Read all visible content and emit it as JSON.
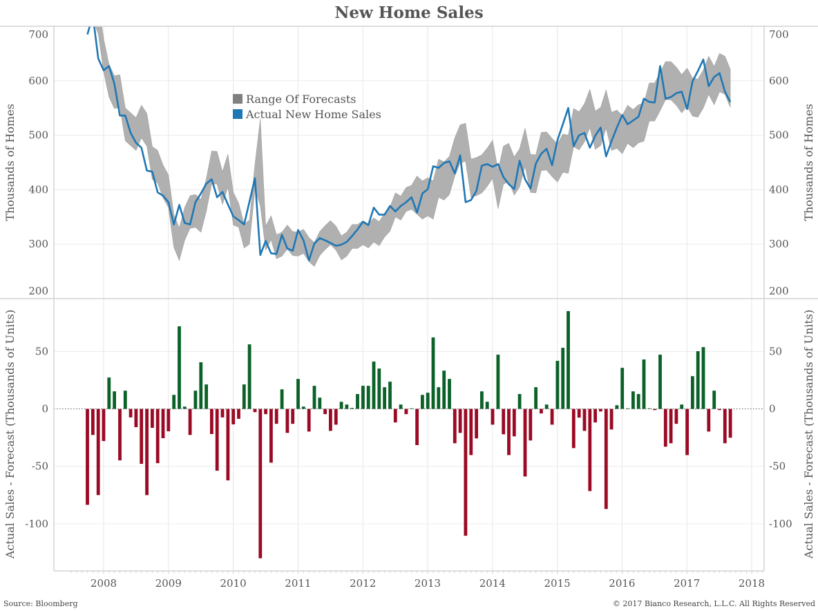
{
  "footer": {
    "source": "Source: Bloomberg",
    "copyright": "© 2017 Bianco Research, L.L.C. All Rights Reserved"
  },
  "chart_data": {
    "type": "line",
    "title": "New Home Sales",
    "start_month": "2007-10",
    "frequency": "monthly",
    "x_ticks": [
      "2008",
      "2009",
      "2010",
      "2011",
      "2012",
      "2013",
      "2014",
      "2015",
      "2016",
      "2017",
      "2018"
    ],
    "grid": true,
    "top": {
      "type": "area+line",
      "ylabel": "Thousands of Homes",
      "ylim": [
        200,
        700
      ],
      "yticks": [
        200,
        300,
        400,
        500,
        600,
        700
      ],
      "legend_position": "top-center",
      "legend": [
        {
          "label": "Range Of Forecasts",
          "color": "#808080"
        },
        {
          "label": "Actual New Home Sales",
          "color": "#1f77b4"
        }
      ],
      "band_color": "#b0b0b0",
      "actual": [
        685,
        720,
        641,
        619,
        627,
        594,
        536,
        536,
        504,
        486,
        477,
        435,
        433,
        395,
        389,
        377,
        336,
        372,
        339,
        336,
        377,
        393,
        411,
        419,
        386,
        396,
        373,
        351,
        344,
        336,
        378,
        421,
        280,
        306,
        283,
        282,
        317,
        292,
        288,
        326,
        307,
        270,
        301,
        311,
        307,
        302,
        297,
        299,
        304,
        315,
        327,
        341,
        335,
        367,
        354,
        354,
        370,
        360,
        370,
        377,
        386,
        358,
        393,
        401,
        443,
        440,
        449,
        452,
        430,
        463,
        377,
        381,
        398,
        444,
        447,
        442,
        447,
        423,
        410,
        401,
        453,
        419,
        402,
        448,
        466,
        475,
        445,
        491,
        520,
        550,
        480,
        500,
        504,
        477,
        499,
        514,
        461,
        489,
        514,
        537,
        520,
        527,
        534,
        567,
        561,
        560,
        627,
        567,
        570,
        577,
        580,
        548,
        599,
        618,
        639,
        590,
        607,
        614,
        580,
        561
      ],
      "range_low": [
        739,
        713,
        686,
        617,
        570,
        549,
        551,
        490,
        481,
        472,
        495,
        480,
        419,
        412,
        385,
        367,
        294,
        270,
        307,
        329,
        331,
        322,
        360,
        411,
        410,
        373,
        405,
        335,
        331,
        293,
        300,
        402,
        370,
        289,
        308,
        273,
        278,
        291,
        279,
        278,
        283,
        268,
        259,
        279,
        290,
        299,
        289,
        271,
        278,
        292,
        292,
        299,
        293,
        304,
        297,
        313,
        324,
        350,
        344,
        360,
        364,
        355,
        346,
        352,
        346,
        386,
        381,
        391,
        425,
        449,
        452,
        386,
        389,
        394,
        406,
        421,
        365,
        410,
        415,
        390,
        405,
        443,
        395,
        394,
        435,
        436,
        424,
        414,
        432,
        430,
        479,
        473,
        488,
        514,
        474,
        481,
        513,
        472,
        476,
        466,
        485,
        477,
        486,
        489,
        526,
        526,
        545,
        565,
        565,
        555,
        541,
        553,
        535,
        533,
        550,
        575,
        556,
        580,
        575,
        551
      ],
      "range_high": [
        799,
        773,
        746,
        677,
        630,
        609,
        611,
        550,
        541,
        532,
        555,
        540,
        479,
        472,
        445,
        427,
        354,
        330,
        367,
        389,
        391,
        382,
        420,
        471,
        470,
        433,
        465,
        395,
        375,
        337,
        344,
        446,
        530,
        333,
        352,
        317,
        322,
        335,
        323,
        322,
        327,
        312,
        303,
        323,
        334,
        343,
        333,
        315,
        322,
        336,
        336,
        343,
        337,
        348,
        341,
        357,
        368,
        394,
        388,
        404,
        408,
        425,
        416,
        422,
        416,
        456,
        451,
        461,
        495,
        519,
        522,
        456,
        459,
        464,
        476,
        491,
        435,
        480,
        485,
        460,
        475,
        513,
        465,
        464,
        505,
        506,
        494,
        484,
        502,
        500,
        549,
        543,
        558,
        584,
        544,
        551,
        583,
        542,
        546,
        536,
        555,
        547,
        556,
        559,
        596,
        596,
        615,
        635,
        635,
        625,
        611,
        623,
        605,
        603,
        620,
        645,
        626,
        650,
        645,
        621
      ]
    },
    "bottom": {
      "type": "bar",
      "ylabel": "Actual Sales - Forecast (Thousands of Units)",
      "ylim": [
        -141,
        96
      ],
      "yticks": [
        -100,
        -50,
        0,
        50
      ],
      "positive_color": "#0b6128",
      "negative_color": "#9b0a24",
      "values": [
        -83.5,
        -22.7,
        -75,
        -28,
        27.3,
        15.3,
        -44.8,
        15.9,
        -7.4,
        -15.9,
        -47.8,
        -75,
        -16.5,
        -47.2,
        -25.5,
        -19.5,
        12.2,
        71.9,
        2,
        -22.7,
        15.9,
        40.6,
        21.3,
        -21.9,
        -53.8,
        -7.4,
        -62.2,
        -13.5,
        -8.6,
        21.3,
        56.2,
        -2.8,
        -130,
        -4.6,
        -46.8,
        -13,
        17,
        -20.9,
        -13,
        26.1,
        2,
        -19.7,
        20.1,
        9.8,
        -4.6,
        -19.1,
        -13.7,
        6.2,
        3.8,
        0.8,
        12.9,
        20.1,
        20.1,
        41.2,
        35.1,
        18.9,
        23.7,
        -11.8,
        3.8,
        -4.6,
        0.5,
        -31.5,
        12.2,
        14.1,
        62.2,
        18.9,
        33.3,
        26.1,
        -29.9,
        -20.9,
        -110.4,
        -40.2,
        -25.7,
        15.3,
        6.2,
        -13.7,
        47.2,
        -22.1,
        -40.2,
        -23.9,
        12.9,
        -58.8,
        -27.5,
        18.9,
        -4,
        3.8,
        -13.7,
        41.8,
        53.2,
        85.1,
        -34.1,
        -7.6,
        -19.1,
        -71.5,
        -11.8,
        -2.2,
        -87.1,
        -17.9,
        3.2,
        35.7,
        0.5,
        15.3,
        12.9,
        43,
        0.5,
        -1,
        47.2,
        -32.9,
        -29.9,
        -13,
        3.8,
        -40.2,
        28.5,
        50.2,
        53.8,
        -19.7,
        15.9,
        -1,
        -29.9,
        -25.1
      ]
    }
  }
}
